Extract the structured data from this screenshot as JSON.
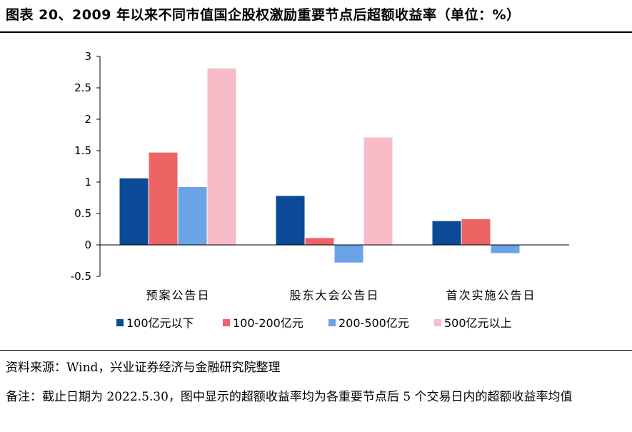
{
  "title": "图表 20、2009 年以来不同市值国企股权激励重要节点后超额收益率（单位：%）",
  "source_text": "资料来源：Wind，兴业证券经济与金融研究院整理",
  "note_text": "备注：截止日期为 2022.5.30，图中显示的超额收益率均为各重要节点后 5 个交易日内的超额收益率均值",
  "chart_data": {
    "type": "bar",
    "categories": [
      "预案公告日",
      "股东大会公告日",
      "首次实施公告日"
    ],
    "series": [
      {
        "name": "100亿元以下",
        "color": "#0a4a96",
        "values": [
          1.06,
          0.78,
          0.38
        ]
      },
      {
        "name": "100-200亿元",
        "color": "#ec6464",
        "values": [
          1.47,
          0.11,
          0.41
        ]
      },
      {
        "name": "200-500亿元",
        "color": "#6aa3e6",
        "values": [
          0.92,
          -0.28,
          -0.13
        ]
      },
      {
        "name": "500亿元以上",
        "color": "#f8bcc8",
        "values": [
          2.81,
          1.71,
          0.0
        ]
      }
    ],
    "yticks": [
      "3",
      "2.5",
      "2",
      "1.5",
      "1",
      "0.5",
      "0",
      "-0.5"
    ],
    "ylim": [
      -0.5,
      3
    ],
    "title": "",
    "xlabel": "",
    "ylabel": "",
    "legend_position": "bottom",
    "grid": false
  }
}
